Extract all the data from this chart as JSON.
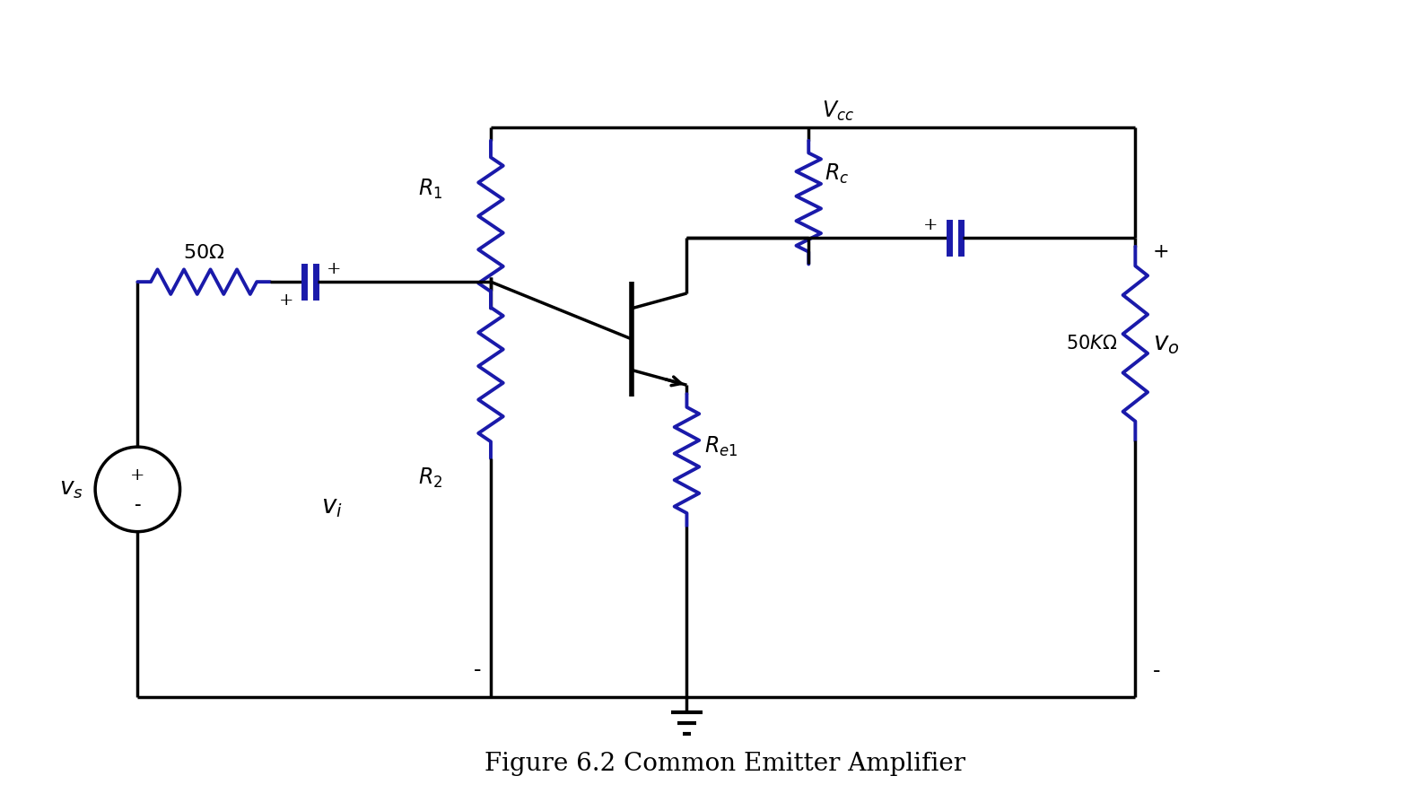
{
  "title": "Figure 6.2 Common Emitter Amplifier",
  "title_fontsize": 20,
  "line_color_black": "#000000",
  "line_color_blue": "#1a1aaa",
  "background_color": "#ffffff",
  "fig_width": 15.86,
  "fig_height": 8.94,
  "lw_main": 2.5,
  "lw_blue": 2.8
}
